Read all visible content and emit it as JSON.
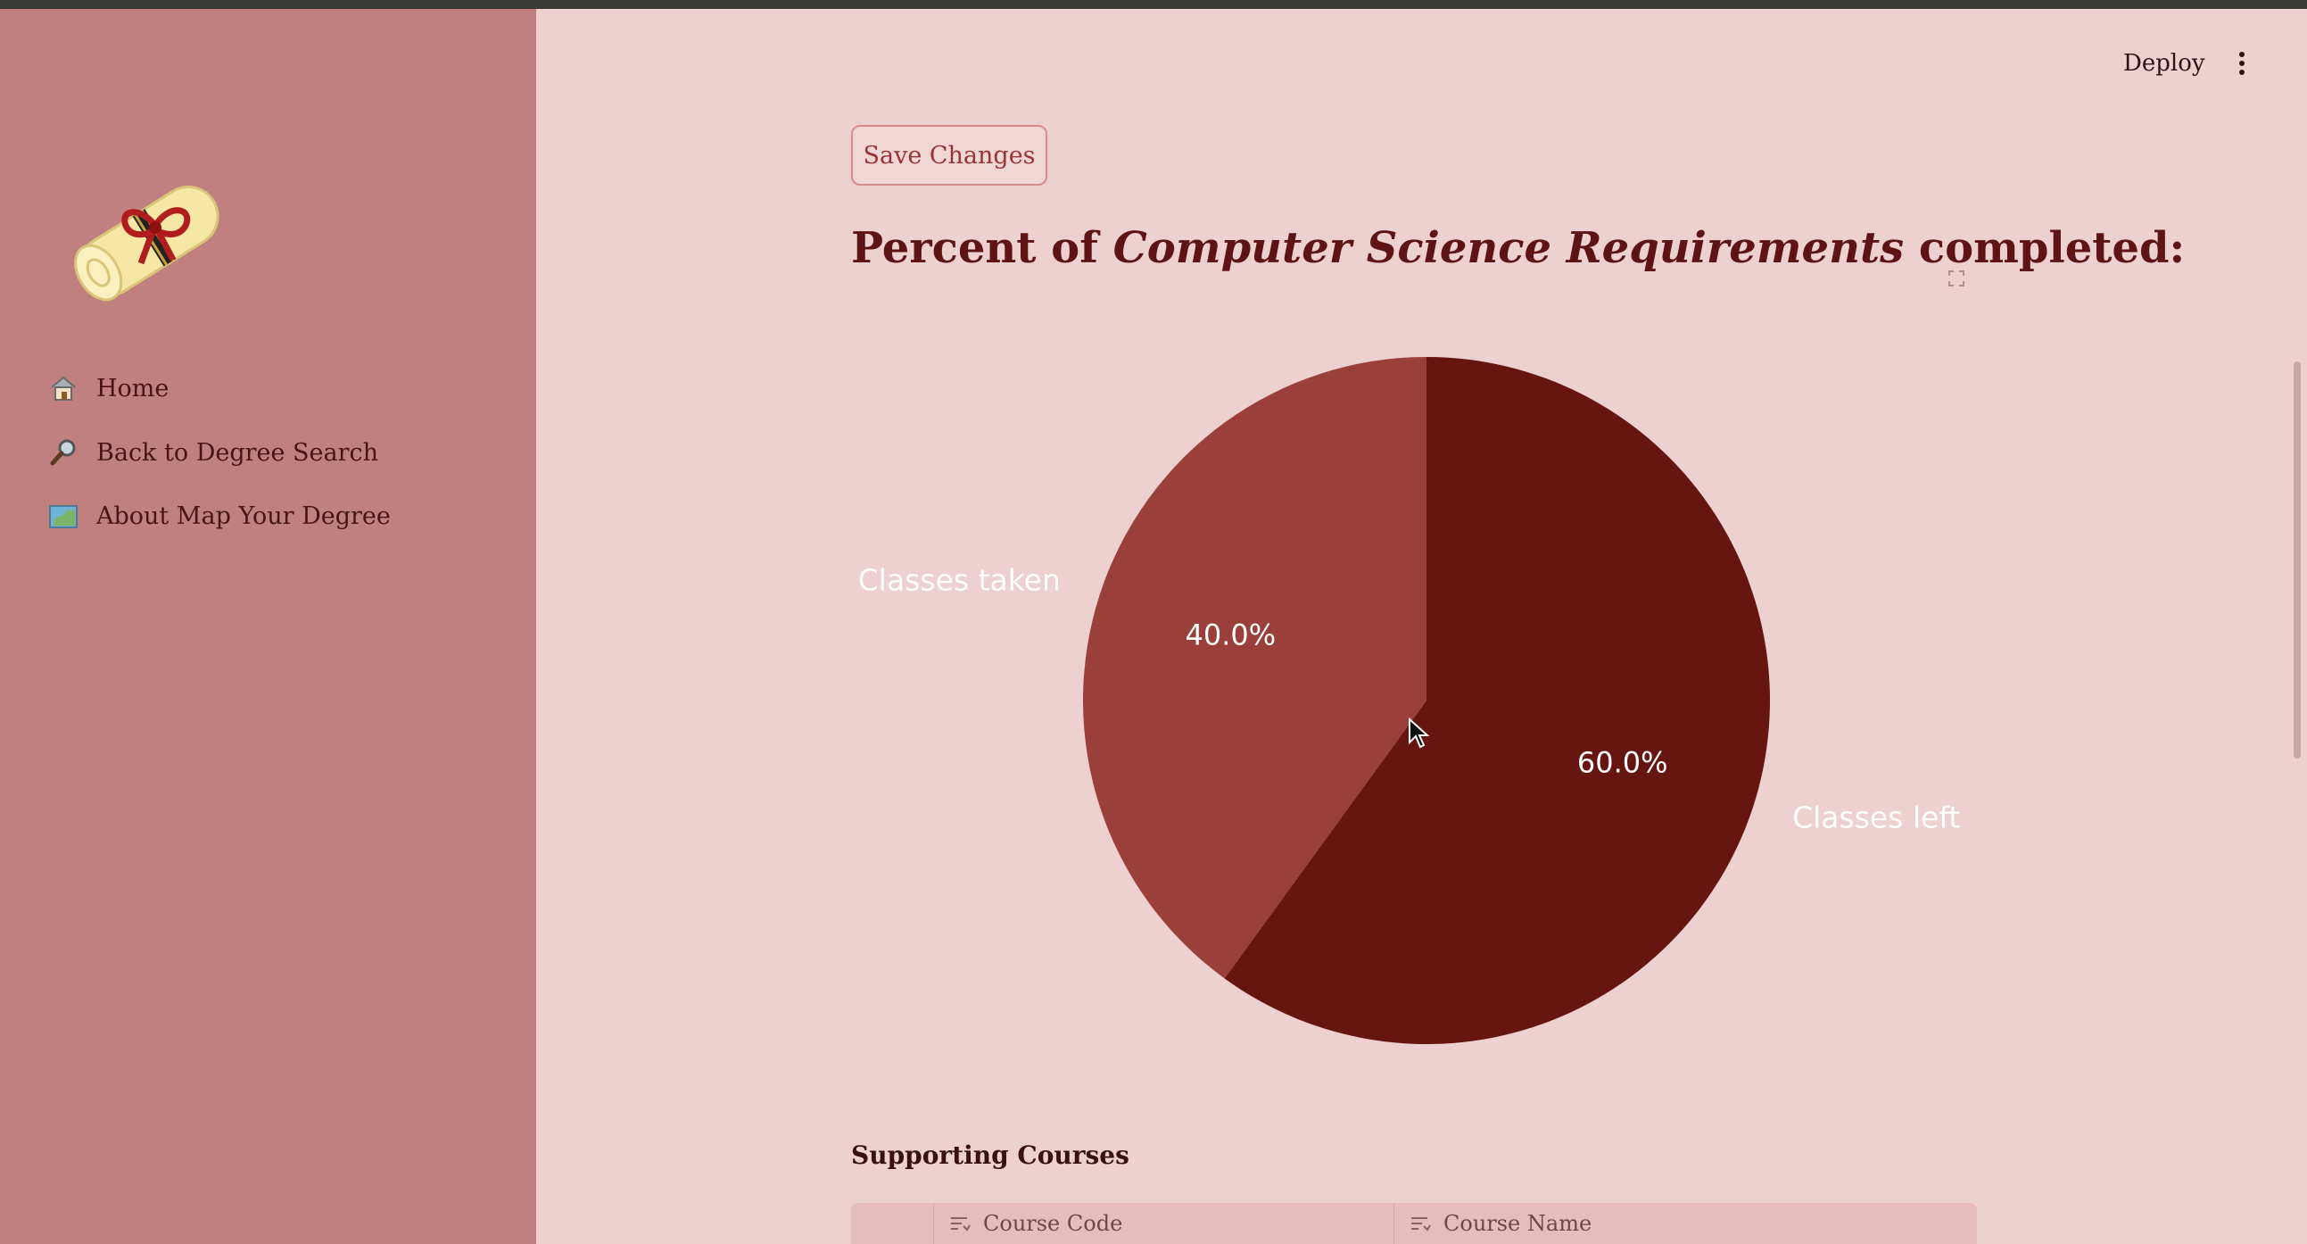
{
  "sidebar": {
    "logo": "diploma-scroll-logo",
    "items": [
      {
        "icon": "house-icon",
        "label": "Home"
      },
      {
        "icon": "magnifier-icon",
        "label": "Back to Degree Search"
      },
      {
        "icon": "map-icon",
        "label": "About Map Your Degree"
      }
    ]
  },
  "header": {
    "deploy_label": "Deploy",
    "menu_icon": "kebab-menu-icon"
  },
  "main": {
    "save_label": "Save Changes",
    "heading_prefix": "Percent of ",
    "heading_emphasis": "Computer Science Requirements",
    "heading_suffix": " completed:",
    "supporting_title": "Supporting Courses",
    "table_columns": [
      "Course Code",
      "Course Name"
    ]
  },
  "colors": {
    "sidebar_bg": "#c08080",
    "main_bg": "#edd0d0",
    "taken": "#9a3f3a",
    "left": "#661510"
  },
  "chart_data": {
    "type": "pie",
    "categories": [
      "Classes taken",
      "Classes left"
    ],
    "values": [
      40.0,
      60.0
    ],
    "labels": [
      "40.0%",
      "60.0%"
    ],
    "colors": [
      "#9a3f3a",
      "#661510"
    ],
    "start_angle": "12 o'clock, counterclockwise",
    "title": ""
  }
}
